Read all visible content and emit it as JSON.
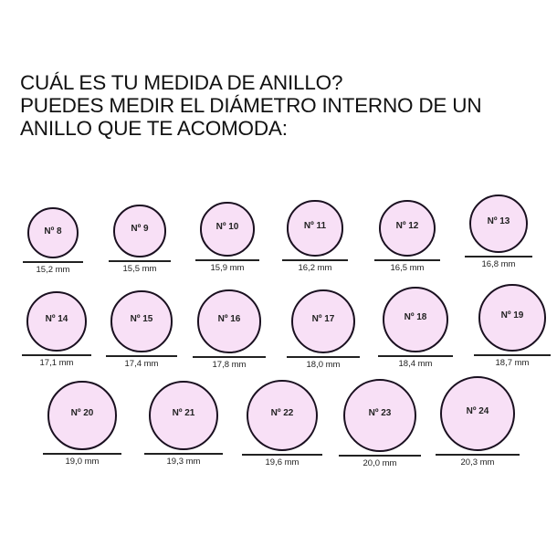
{
  "title": {
    "lines": [
      "CUÁL ES TU MEDIDA DE ANILLO?",
      "PUEDES MEDIR EL DIÁMETRO INTERNO DE UN",
      "ANILLO QUE TE ACOMODA:"
    ]
  },
  "fill_color": "#f8e0f6",
  "rings": [
    {
      "size": "Nº 8",
      "diameter": "15,2 mm",
      "mm": 15.2
    },
    {
      "size": "Nº 9",
      "diameter": "15,5 mm",
      "mm": 15.5
    },
    {
      "size": "Nº 10",
      "diameter": "15,9 mm",
      "mm": 15.9
    },
    {
      "size": "Nº 11",
      "diameter": "16,2 mm",
      "mm": 16.2
    },
    {
      "size": "Nº 12",
      "diameter": "16,5 mm",
      "mm": 16.5
    },
    {
      "size": "Nº 13",
      "diameter": "16,8 mm",
      "mm": 16.8
    },
    {
      "size": "Nº 14",
      "diameter": "17,1 mm",
      "mm": 17.1
    },
    {
      "size": "Nº 15",
      "diameter": "17,4 mm",
      "mm": 17.4
    },
    {
      "size": "Nº 16",
      "diameter": "17,8 mm",
      "mm": 17.8
    },
    {
      "size": "Nº 17",
      "diameter": "18,0 mm",
      "mm": 18.0
    },
    {
      "size": "Nº 18",
      "diameter": "18,4 mm",
      "mm": 18.4
    },
    {
      "size": "Nº 19",
      "diameter": "18,7 mm",
      "mm": 18.7
    },
    {
      "size": "Nº 20",
      "diameter": "19,0 mm",
      "mm": 19.0
    },
    {
      "size": "Nº 21",
      "diameter": "19,3 mm",
      "mm": 19.3
    },
    {
      "size": "Nº 22",
      "diameter": "19,6 mm",
      "mm": 19.6
    },
    {
      "size": "Nº 23",
      "diameter": "20,0 mm",
      "mm": 20.0
    },
    {
      "size": "Nº 24",
      "diameter": "20,3 mm",
      "mm": 20.3
    }
  ]
}
